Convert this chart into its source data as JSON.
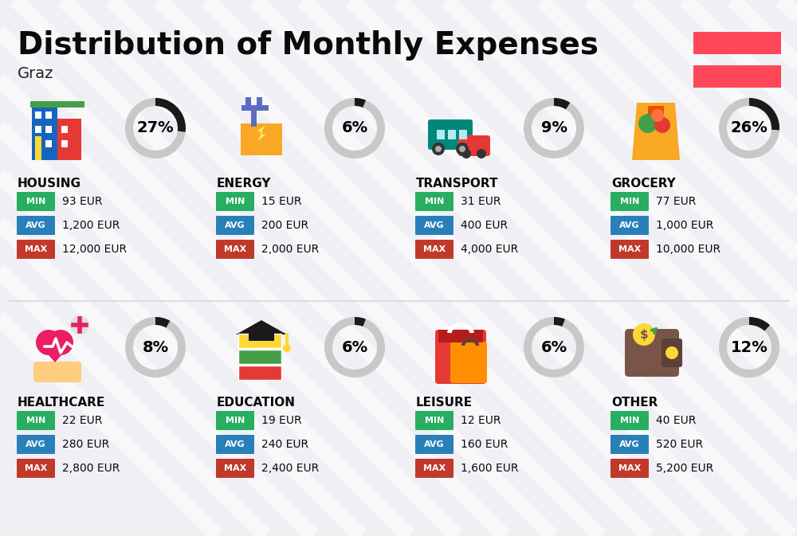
{
  "title": "Distribution of Monthly Expenses",
  "subtitle": "Graz",
  "bg_color": "#f0f0f4",
  "categories": [
    {
      "name": "HOUSING",
      "percent": 27,
      "min_val": "93 EUR",
      "avg_val": "1,200 EUR",
      "max_val": "12,000 EUR",
      "col": 0,
      "row": 0
    },
    {
      "name": "ENERGY",
      "percent": 6,
      "min_val": "15 EUR",
      "avg_val": "200 EUR",
      "max_val": "2,000 EUR",
      "col": 1,
      "row": 0
    },
    {
      "name": "TRANSPORT",
      "percent": 9,
      "min_val": "31 EUR",
      "avg_val": "400 EUR",
      "max_val": "4,000 EUR",
      "col": 2,
      "row": 0
    },
    {
      "name": "GROCERY",
      "percent": 26,
      "min_val": "77 EUR",
      "avg_val": "1,000 EUR",
      "max_val": "10,000 EUR",
      "col": 3,
      "row": 0
    },
    {
      "name": "HEALTHCARE",
      "percent": 8,
      "min_val": "22 EUR",
      "avg_val": "280 EUR",
      "max_val": "2,800 EUR",
      "col": 0,
      "row": 1
    },
    {
      "name": "EDUCATION",
      "percent": 6,
      "min_val": "19 EUR",
      "avg_val": "240 EUR",
      "max_val": "2,400 EUR",
      "col": 1,
      "row": 1
    },
    {
      "name": "LEISURE",
      "percent": 6,
      "min_val": "12 EUR",
      "avg_val": "160 EUR",
      "max_val": "1,600 EUR",
      "col": 2,
      "row": 1
    },
    {
      "name": "OTHER",
      "percent": 12,
      "min_val": "40 EUR",
      "avg_val": "520 EUR",
      "max_val": "5,200 EUR",
      "col": 3,
      "row": 1
    }
  ],
  "color_min": "#27ae60",
  "color_avg": "#2980b9",
  "color_max": "#c0392b",
  "color_donut_filled": "#1a1a1a",
  "color_donut_empty": "#c8c8c8",
  "flag_color": "#ff4757",
  "title_fontsize": 28,
  "subtitle_fontsize": 14,
  "cat_fontsize": 11,
  "val_fontsize": 10,
  "pct_fontsize": 14
}
